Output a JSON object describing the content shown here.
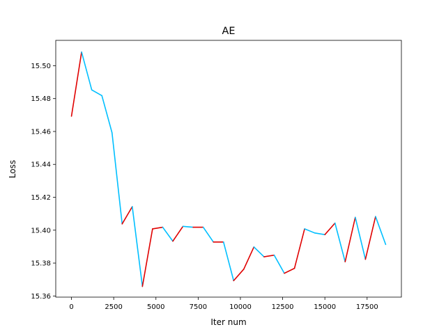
{
  "chart_data": {
    "type": "line",
    "title": "AE",
    "xlabel": "Iter num",
    "ylabel": "Loss",
    "xlim": [
      -930,
      19530
    ],
    "ylim": [
      15.3593,
      15.5154
    ],
    "xticks": [
      0,
      2500,
      5000,
      7500,
      10000,
      12500,
      15000,
      17500
    ],
    "xtick_labels": [
      "0",
      "2500",
      "5000",
      "7500",
      "10000",
      "12500",
      "15000",
      "17500"
    ],
    "yticks": [
      15.36,
      15.38,
      15.4,
      15.42,
      15.44,
      15.46,
      15.48,
      15.5
    ],
    "ytick_labels": [
      "15.36",
      "15.38",
      "15.40",
      "15.42",
      "15.44",
      "15.46",
      "15.48",
      "15.50"
    ],
    "grid": false,
    "legend": "none",
    "colors": {
      "increase": "#e00000",
      "decrease": "#00bfff"
    },
    "x": [
      0,
      600,
      1200,
      1800,
      2400,
      3000,
      3600,
      4200,
      4800,
      5400,
      6000,
      6600,
      7200,
      7800,
      8400,
      9000,
      9600,
      10200,
      10800,
      11400,
      12000,
      12600,
      13200,
      13800,
      14400,
      15000,
      15600,
      16200,
      16800,
      17400,
      18000,
      18600
    ],
    "values": [
      15.4693,
      15.5083,
      15.4853,
      15.4818,
      15.4593,
      15.4038,
      15.4143,
      15.3658,
      15.4008,
      15.4018,
      15.3933,
      15.4023,
      15.4018,
      15.4018,
      15.3928,
      15.3928,
      15.3693,
      15.3763,
      15.3898,
      15.3838,
      15.3848,
      15.3738,
      15.3768,
      15.4008,
      15.3983,
      15.3973,
      15.4043,
      15.3808,
      15.4078,
      15.3823,
      15.4083,
      15.3913
    ]
  }
}
